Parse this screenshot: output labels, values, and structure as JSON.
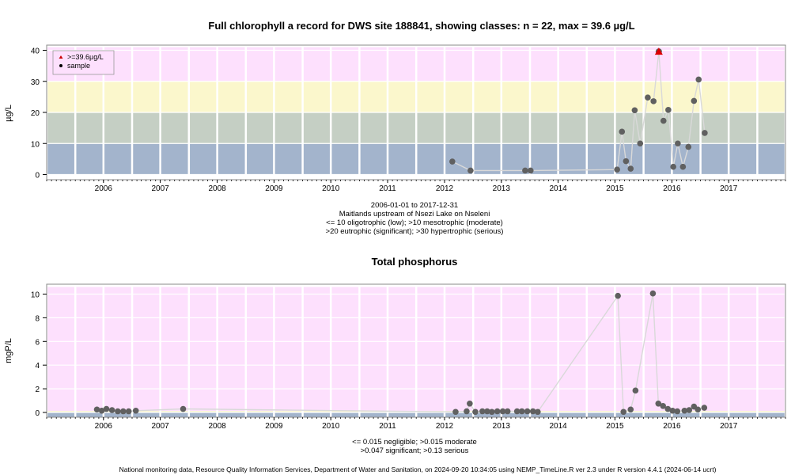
{
  "chart_data": [
    {
      "type": "scatter",
      "title": "Full chlorophyll a record for DWS site 188841, showing classes: n = 22, max = 39.6 µg/L",
      "ylabel": "µg/L",
      "ylim": [
        0,
        40
      ],
      "yticks": [
        "0",
        "10",
        "20",
        "30",
        "40"
      ],
      "x_tick_labels": [
        "2006",
        "2007",
        "2008",
        "2009",
        "2010",
        "2011",
        "2012",
        "2013",
        "2014",
        "2015",
        "2016",
        "2017"
      ],
      "x_range": [
        "2005-07-01",
        "2018-07-01"
      ],
      "bands": [
        {
          "from": 0,
          "to": 10,
          "color": "#a3b4cc"
        },
        {
          "from": 10,
          "to": 20,
          "color": "#c5cfc4"
        },
        {
          "from": 20,
          "to": 30,
          "color": "#fbf7cc"
        },
        {
          "from": 30,
          "to": 41,
          "color": "#fde0fd"
        }
      ],
      "legend": {
        "position": "top-left",
        "items": [
          {
            "label": ">=39.6µg/L",
            "color": "#cc0000",
            "marker": "triangle"
          },
          {
            "label": "sample",
            "color": "#000000",
            "marker": "dot"
          }
        ]
      },
      "subtitle_lines": [
        "2006-01-01 to 2017-12-31",
        "Maitlands upstream of Nsezi Lake on Nseleni",
        "<= 10 oligotrophic (low); >10 mesotrophic (moderate)",
        ">20 eutrophic (significant); >30 hypertrophic (serious)"
      ],
      "points": [
        {
          "x": "2012-08-20",
          "y": 4.2
        },
        {
          "x": "2012-12-15",
          "y": 1.3
        },
        {
          "x": "2013-12-01",
          "y": 1.3
        },
        {
          "x": "2014-01-05",
          "y": 1.3
        },
        {
          "x": "2015-07-15",
          "y": 1.6
        },
        {
          "x": "2015-08-15",
          "y": 13.8
        },
        {
          "x": "2015-09-10",
          "y": 4.3
        },
        {
          "x": "2015-10-10",
          "y": 1.9
        },
        {
          "x": "2015-11-05",
          "y": 20.7
        },
        {
          "x": "2015-12-10",
          "y": 10.0
        },
        {
          "x": "2016-01-28",
          "y": 24.8
        },
        {
          "x": "2016-03-05",
          "y": 23.6
        },
        {
          "x": "2016-04-08",
          "y": 39.6,
          "max": true
        },
        {
          "x": "2016-05-08",
          "y": 17.3
        },
        {
          "x": "2016-06-08",
          "y": 20.8
        },
        {
          "x": "2016-07-10",
          "y": 2.5
        },
        {
          "x": "2016-08-08",
          "y": 10.0
        },
        {
          "x": "2016-09-10",
          "y": 2.5
        },
        {
          "x": "2016-10-15",
          "y": 8.9
        },
        {
          "x": "2016-11-20",
          "y": 23.7
        },
        {
          "x": "2016-12-20",
          "y": 30.6
        },
        {
          "x": "2017-01-28",
          "y": 13.4
        }
      ]
    },
    {
      "type": "scatter",
      "title": "Total phosphorus",
      "ylabel": "mgP/L",
      "ylim": [
        0,
        10.4
      ],
      "yticks": [
        "0",
        "2",
        "4",
        "6",
        "8",
        "10"
      ],
      "x_tick_labels": [
        "2006",
        "2007",
        "2008",
        "2009",
        "2010",
        "2011",
        "2012",
        "2013",
        "2014",
        "2015",
        "2016",
        "2017"
      ],
      "x_range": [
        "2005-07-01",
        "2018-07-01"
      ],
      "bands": [
        {
          "from": -0.5,
          "to": 0.015,
          "color": "#a3b4cc"
        },
        {
          "from": 0.015,
          "to": 0.047,
          "color": "#c5cfc4"
        },
        {
          "from": 0.047,
          "to": 0.13,
          "color": "#fbf7cc"
        },
        {
          "from": 0.13,
          "to": 10.6,
          "color": "#fde0fd"
        }
      ],
      "subtitle_lines": [
        "<= 0.015 negligible; >0.015 moderate",
        ">0.047 significant; >0.13 serious"
      ],
      "points": [
        {
          "x": "2006-05-20",
          "y": 0.25
        },
        {
          "x": "2006-06-20",
          "y": 0.15
        },
        {
          "x": "2006-07-20",
          "y": 0.3
        },
        {
          "x": "2006-08-25",
          "y": 0.2
        },
        {
          "x": "2006-10-01",
          "y": 0.1
        },
        {
          "x": "2006-11-05",
          "y": 0.1
        },
        {
          "x": "2006-12-10",
          "y": 0.1
        },
        {
          "x": "2007-01-25",
          "y": 0.15
        },
        {
          "x": "2007-11-25",
          "y": 0.3
        },
        {
          "x": "2012-09-10",
          "y": 0.05
        },
        {
          "x": "2012-11-20",
          "y": 0.1
        },
        {
          "x": "2012-12-10",
          "y": 0.75
        },
        {
          "x": "2013-01-15",
          "y": 0.05
        },
        {
          "x": "2013-03-01",
          "y": 0.1
        },
        {
          "x": "2013-04-01",
          "y": 0.1
        },
        {
          "x": "2013-05-01",
          "y": 0.05
        },
        {
          "x": "2013-06-05",
          "y": 0.1
        },
        {
          "x": "2013-07-10",
          "y": 0.1
        },
        {
          "x": "2013-08-10",
          "y": 0.1
        },
        {
          "x": "2013-10-10",
          "y": 0.1
        },
        {
          "x": "2013-11-10",
          "y": 0.1
        },
        {
          "x": "2013-12-15",
          "y": 0.1
        },
        {
          "x": "2014-01-20",
          "y": 0.1
        },
        {
          "x": "2014-02-20",
          "y": 0.05
        },
        {
          "x": "2015-07-20",
          "y": 9.85
        },
        {
          "x": "2015-08-25",
          "y": 0.05
        },
        {
          "x": "2015-10-10",
          "y": 0.25
        },
        {
          "x": "2015-11-10",
          "y": 1.85
        },
        {
          "x": "2016-03-01",
          "y": 10.05
        },
        {
          "x": "2016-04-05",
          "y": 0.75
        },
        {
          "x": "2016-05-05",
          "y": 0.55
        },
        {
          "x": "2016-06-05",
          "y": 0.3
        },
        {
          "x": "2016-07-05",
          "y": 0.15
        },
        {
          "x": "2016-08-05",
          "y": 0.1
        },
        {
          "x": "2016-09-20",
          "y": 0.15
        },
        {
          "x": "2016-10-20",
          "y": 0.2
        },
        {
          "x": "2016-11-20",
          "y": 0.5
        },
        {
          "x": "2016-12-15",
          "y": 0.25
        },
        {
          "x": "2017-01-25",
          "y": 0.4
        }
      ]
    }
  ],
  "footer": "National monitoring data, Resource Quality Information Services, Department of Water and Sanitation, on 2024-09-20 10:34:05 using NEMP_TimeLine.R ver 2.3 under R version 4.4.1 (2024-06-14 ucrt)"
}
